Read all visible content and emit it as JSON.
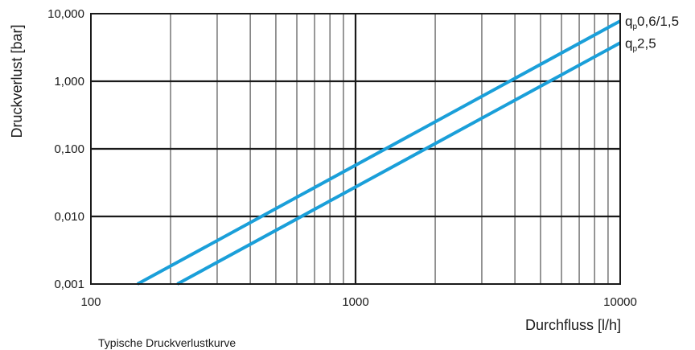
{
  "chart_data": {
    "type": "line",
    "x_scale": "log",
    "y_scale": "log",
    "xlabel": "Durchfluss [l/h]",
    "ylabel": "Druckverlust [bar]",
    "caption": "Typische Druckverlustkurve",
    "xlim": [
      100,
      10000
    ],
    "ylim": [
      0.001,
      10
    ],
    "x_ticks": [
      {
        "value": 100,
        "label": "100"
      },
      {
        "value": 1000,
        "label": "1000"
      },
      {
        "value": 10000,
        "label": "10000"
      }
    ],
    "y_ticks": [
      {
        "value": 0.001,
        "label": "0,001"
      },
      {
        "value": 0.01,
        "label": "0,010"
      },
      {
        "value": 0.1,
        "label": "0,100"
      },
      {
        "value": 1,
        "label": "1,000"
      },
      {
        "value": 10,
        "label": "10,000"
      }
    ],
    "grid": true,
    "series": [
      {
        "name_main": "q",
        "name_sub": "p",
        "name_rest": "0,6/1,5",
        "points": [
          {
            "x": 150,
            "y": 0.001
          },
          {
            "x": 10000,
            "y": 7.8
          }
        ]
      },
      {
        "name_main": "q",
        "name_sub": "p",
        "name_rest": "2,5",
        "points": [
          {
            "x": 212,
            "y": 0.001
          },
          {
            "x": 10000,
            "y": 3.7
          }
        ]
      }
    ],
    "colors": {
      "series": "#1a9fd9",
      "grid": "#1a1a1a"
    }
  }
}
